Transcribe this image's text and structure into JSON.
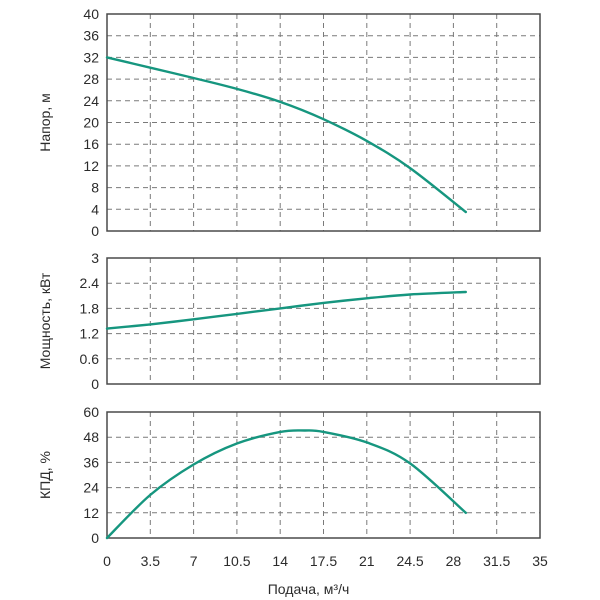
{
  "colors": {
    "curve": "#16967f",
    "grid": "#7a7a7a",
    "frame": "#4a4a4a",
    "text": "#2b2b2b"
  },
  "chart_data": [
    {
      "type": "line",
      "name": "head",
      "title": "",
      "xlabel": "",
      "ylabel": "Напор, м",
      "xlim": [
        0,
        35
      ],
      "ylim": [
        0,
        40
      ],
      "xticks": [
        0,
        3.5,
        7,
        10.5,
        14,
        17.5,
        21,
        24.5,
        28,
        31.5,
        35
      ],
      "yticks": [
        0,
        4,
        8,
        12,
        16,
        20,
        24,
        28,
        32,
        36,
        40
      ],
      "ytick_labels": [
        "0",
        "4",
        "8",
        "12",
        "16",
        "20",
        "24",
        "28",
        "32",
        "36",
        "40"
      ],
      "series": [
        {
          "name": "Напор",
          "x": [
            0,
            3.5,
            7,
            10.5,
            14,
            17.5,
            21,
            24.5,
            29
          ],
          "y": [
            32,
            30.1,
            28.2,
            26.2,
            23.8,
            20.6,
            16.6,
            11.6,
            3.5
          ]
        }
      ]
    },
    {
      "type": "line",
      "name": "power",
      "title": "",
      "xlabel": "",
      "ylabel": "Мощность, кВт",
      "xlim": [
        0,
        35
      ],
      "ylim": [
        0,
        3
      ],
      "xticks": [
        0,
        3.5,
        7,
        10.5,
        14,
        17.5,
        21,
        24.5,
        28,
        31.5,
        35
      ],
      "yticks": [
        0,
        0.6,
        1.2,
        1.8,
        2.4,
        3
      ],
      "ytick_labels": [
        "0",
        "0.6",
        "1.2",
        "1.8",
        "2.4",
        "3"
      ],
      "series": [
        {
          "name": "Мощность",
          "x": [
            0,
            3.5,
            7,
            10.5,
            14,
            17.5,
            21,
            24.5,
            29
          ],
          "y": [
            1.32,
            1.42,
            1.54,
            1.67,
            1.8,
            1.93,
            2.04,
            2.13,
            2.19
          ]
        }
      ]
    },
    {
      "type": "line",
      "name": "efficiency",
      "title": "",
      "xlabel": "Подача, м³/ч",
      "ylabel": "КПД, %",
      "xlim": [
        0,
        35
      ],
      "ylim": [
        0,
        60
      ],
      "xticks": [
        0,
        3.5,
        7,
        10.5,
        14,
        17.5,
        21,
        24.5,
        28,
        31.5,
        35
      ],
      "xtick_labels": [
        "0",
        "3.5",
        "7",
        "10.5",
        "14",
        "17.5",
        "21",
        "24.5",
        "28",
        "31.5",
        "35"
      ],
      "yticks": [
        0,
        12,
        24,
        36,
        48,
        60
      ],
      "ytick_labels": [
        "0",
        "12",
        "24",
        "36",
        "48",
        "60"
      ],
      "series": [
        {
          "name": "КПД",
          "x": [
            0,
            3.5,
            7,
            10.5,
            14,
            16,
            17.5,
            21,
            24.5,
            29
          ],
          "y": [
            0,
            20.5,
            35,
            45,
            50.5,
            51.2,
            50.5,
            45.5,
            35.5,
            12
          ]
        }
      ]
    }
  ]
}
